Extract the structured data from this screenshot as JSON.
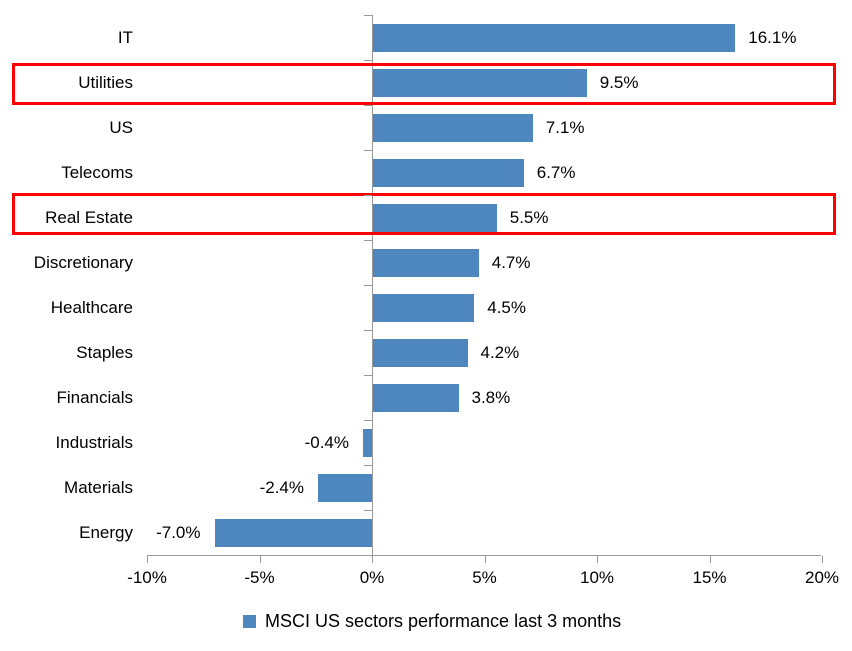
{
  "chart_data": {
    "type": "bar",
    "orientation": "horizontal",
    "title": "",
    "xlabel": "",
    "ylabel": "",
    "categories": [
      "IT",
      "Utilities",
      "US",
      "Telecoms",
      "Real Estate",
      "Discretionary",
      "Healthcare",
      "Staples",
      "Financials",
      "Industrials",
      "Materials",
      "Energy"
    ],
    "series": [
      {
        "name": "MSCI US sectors performance last 3 months",
        "values": [
          16.1,
          9.5,
          7.1,
          6.7,
          5.5,
          4.7,
          4.5,
          4.2,
          3.8,
          -0.4,
          -2.4,
          -7.0
        ]
      }
    ],
    "data_labels": [
      "16.1%",
      "9.5%",
      "7.1%",
      "6.7%",
      "5.5%",
      "4.7%",
      "4.5%",
      "4.2%",
      "3.8%",
      "-0.4%",
      "-2.4%",
      "-7.0%"
    ],
    "x_tick_labels": [
      "-10%",
      "-5%",
      "0%",
      "5%",
      "10%",
      "15%",
      "20%"
    ],
    "x_tick_values": [
      -10,
      -5,
      0,
      5,
      10,
      15,
      20
    ],
    "x_range": [
      -10,
      20
    ],
    "grid": "off",
    "legend_position": "bottom",
    "legend_label": "MSCI US sectors performance last 3 months",
    "highlighted_categories": [
      "Utilities",
      "Real Estate"
    ],
    "colors": {
      "bar": "#4E86BE",
      "axis": "#999999",
      "text": "#000000",
      "highlight_box": "#FF0000"
    }
  }
}
